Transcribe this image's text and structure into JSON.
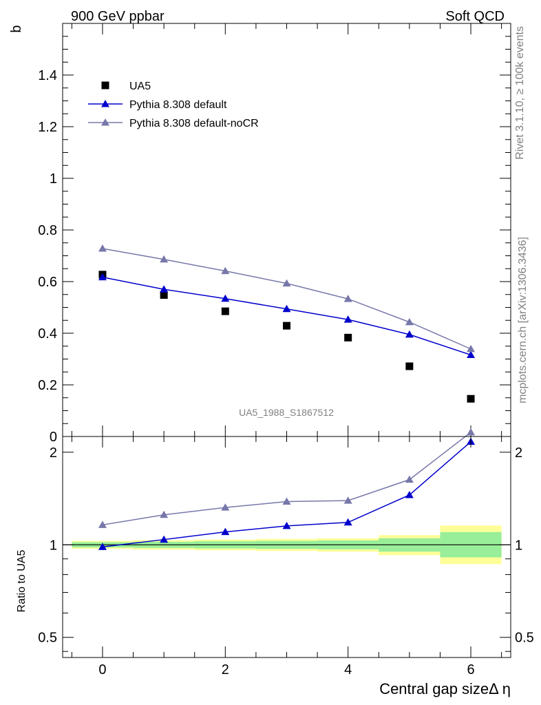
{
  "header": {
    "left": "900 GeV ppbar",
    "right": "Soft QCD"
  },
  "side_labels": {
    "rivet": "Rivet 3.1.10, ≥ 100k events",
    "mcplots": "mcplots.cern.ch [arXiv:1306.3436]"
  },
  "analysis_id": "UA5_1988_S1867512",
  "chart_data": [
    {
      "type": "scatter",
      "ylabel": "b",
      "xlim": [
        -0.65,
        6.65
      ],
      "ylim": [
        0,
        1.6
      ],
      "yticks": [
        {
          "v": 0,
          "label": "0"
        },
        {
          "v": 0.2,
          "label": "0.2"
        },
        {
          "v": 0.4,
          "label": "0.4"
        },
        {
          "v": 0.6,
          "label": "0.6"
        },
        {
          "v": 0.8,
          "label": "0.8"
        },
        {
          "v": 1.0,
          "label": "1"
        },
        {
          "v": 1.2,
          "label": "1.2"
        },
        {
          "v": 1.4,
          "label": "1.4"
        }
      ],
      "legend_position": "top-left",
      "series": [
        {
          "name": "UA5",
          "kind": "data",
          "color": "#000000",
          "x": [
            0,
            1,
            2,
            3,
            4,
            5,
            6
          ],
          "values": [
            0.627,
            0.548,
            0.485,
            0.429,
            0.383,
            0.272,
            0.146
          ]
        },
        {
          "name": "Pythia 8.308 default",
          "kind": "mc",
          "color": "#0000cc",
          "x": [
            0,
            1,
            2,
            3,
            4,
            5,
            6
          ],
          "values": [
            0.617,
            0.57,
            0.534,
            0.494,
            0.453,
            0.395,
            0.316
          ]
        },
        {
          "name": "Pythia 8.308 default-noCR",
          "kind": "mc",
          "color": "#7777aa",
          "x": [
            0,
            1,
            2,
            3,
            4,
            5,
            6
          ],
          "values": [
            0.728,
            0.686,
            0.641,
            0.593,
            0.533,
            0.443,
            0.339
          ]
        }
      ]
    },
    {
      "type": "line",
      "ylabel": "Ratio to UA5",
      "xlabel": "Central gap sizeΔ η",
      "xlim": [
        -0.65,
        6.65
      ],
      "ylim": [
        0.43,
        2.25
      ],
      "log_y": true,
      "xticks": [
        {
          "v": 0,
          "label": "0"
        },
        {
          "v": 2,
          "label": "2"
        },
        {
          "v": 4,
          "label": "4"
        },
        {
          "v": 6,
          "label": "6"
        }
      ],
      "yticks": [
        {
          "v": 0.5,
          "label": "0.5"
        },
        {
          "v": 1,
          "label": "1"
        },
        {
          "v": 2,
          "label": "2"
        }
      ],
      "bands": [
        {
          "x0": -0.5,
          "x1": 0.5,
          "yellow": [
            0.97,
            1.03
          ],
          "green": [
            0.98,
            1.02
          ]
        },
        {
          "x0": 0.5,
          "x1": 1.5,
          "yellow": [
            0.965,
            1.035
          ],
          "green": [
            0.977,
            1.023
          ]
        },
        {
          "x0": 1.5,
          "x1": 2.5,
          "yellow": [
            0.96,
            1.04
          ],
          "green": [
            0.973,
            1.027
          ]
        },
        {
          "x0": 2.5,
          "x1": 3.5,
          "yellow": [
            0.955,
            1.045
          ],
          "green": [
            0.97,
            1.03
          ]
        },
        {
          "x0": 3.5,
          "x1": 4.5,
          "yellow": [
            0.95,
            1.05
          ],
          "green": [
            0.967,
            1.033
          ]
        },
        {
          "x0": 4.5,
          "x1": 5.5,
          "yellow": [
            0.925,
            1.075
          ],
          "green": [
            0.95,
            1.05
          ]
        },
        {
          "x0": 5.5,
          "x1": 6.5,
          "yellow": [
            0.865,
            1.155
          ],
          "green": [
            0.91,
            1.1
          ]
        }
      ],
      "series": [
        {
          "name": "Pythia 8.308 default",
          "color": "#0000cc",
          "x": [
            0,
            1,
            2,
            3,
            4,
            5,
            6
          ],
          "values": [
            0.984,
            1.04,
            1.101,
            1.152,
            1.183,
            1.452,
            2.164
          ]
        },
        {
          "name": "Pythia 8.308 default-noCR",
          "color": "#7777aa",
          "x": [
            0,
            1,
            2,
            3,
            4,
            5,
            6
          ],
          "values": [
            1.161,
            1.252,
            1.322,
            1.382,
            1.392,
            1.629,
            2.322
          ]
        }
      ]
    }
  ]
}
